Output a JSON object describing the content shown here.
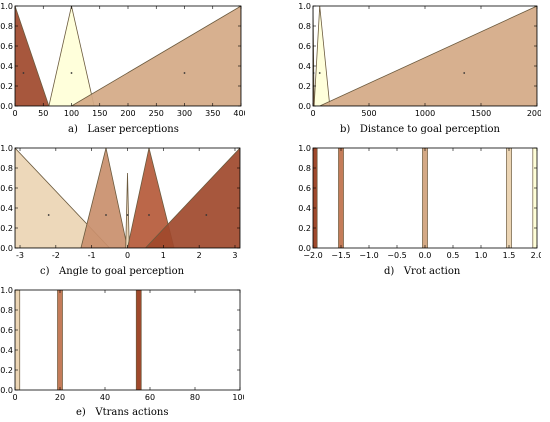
{
  "chart_data": [
    {
      "type": "area",
      "caption": "a)   Laser perceptions",
      "xlim": [
        0,
        400
      ],
      "ylim": [
        0,
        1.0
      ],
      "xticks": [
        0,
        50,
        100,
        150,
        200,
        250,
        300,
        350,
        400
      ],
      "yticks": [
        "0.0",
        "0.2",
        "0.4",
        "0.6",
        "0.8",
        "1.0"
      ],
      "grid": false,
      "series": [
        {
          "points": [
            [
              0,
              1.0
            ],
            [
              60,
              0
            ]
          ],
          "color": "#a0492c",
          "center": [
            15,
            0.33
          ],
          "shape": "left-shoulder"
        },
        {
          "points": [
            [
              60,
              0
            ],
            [
              100,
              1.0
            ],
            [
              140,
              0
            ]
          ],
          "color": "#ffffd8",
          "center": [
            100,
            0.33
          ],
          "shape": "triangle"
        },
        {
          "points": [
            [
              100,
              0
            ],
            [
              400,
              1.0
            ]
          ],
          "color": "#d4a985",
          "center": [
            300,
            0.33
          ],
          "shape": "right-shoulder"
        }
      ]
    },
    {
      "type": "area",
      "caption": "b)   Distance to goal perception",
      "xlim": [
        0,
        2000
      ],
      "ylim": [
        0,
        1.0
      ],
      "xticks": [
        0,
        500,
        1000,
        1500,
        2000
      ],
      "yticks": [
        "0.0",
        "0.2",
        "0.4",
        "0.6",
        "0.8",
        "1.0"
      ],
      "grid": false,
      "series": [
        {
          "points": [
            [
              0,
              1.0
            ],
            [
              10,
              0
            ]
          ],
          "color": "#a0492c",
          "center": [
            5,
            0.33
          ],
          "shape": "left-shoulder"
        },
        {
          "points": [
            [
              10,
              0
            ],
            [
              60,
              1.0
            ],
            [
              150,
              0
            ]
          ],
          "color": "#ffffd8",
          "center": [
            60,
            0.33
          ],
          "shape": "triangle"
        },
        {
          "points": [
            [
              60,
              0
            ],
            [
              2000,
              1.0
            ]
          ],
          "color": "#d4a985",
          "center": [
            1350,
            0.33
          ],
          "shape": "right-shoulder"
        }
      ]
    },
    {
      "type": "area",
      "caption": "c)   Angle to goal perception",
      "xlim": [
        -3.14,
        3.14
      ],
      "ylim": [
        0,
        1.0
      ],
      "xticks": [
        -3,
        -2,
        -1,
        0,
        1,
        2,
        3
      ],
      "yticks": [
        "0.0",
        "0.2",
        "0.4",
        "0.6",
        "0.8",
        "1.0"
      ],
      "grid": false,
      "series": [
        {
          "points": [
            [
              -3.14,
              1.0
            ],
            [
              -0.5,
              0
            ]
          ],
          "color": "#ecd5b4",
          "center": [
            -2.2,
            0.33
          ],
          "shape": "left-shoulder"
        },
        {
          "points": [
            [
              -1.3,
              0
            ],
            [
              -0.6,
              1.0
            ],
            [
              0,
              0
            ]
          ],
          "color": "#c98f6c",
          "center": [
            -0.6,
            0.33
          ],
          "shape": "triangle"
        },
        {
          "points": [
            [
              -0.05,
              0
            ],
            [
              0,
              0.75
            ],
            [
              0.05,
              0
            ]
          ],
          "color": "#e8d3b3",
          "center": [
            0,
            0.33
          ],
          "shape": "triangle"
        },
        {
          "points": [
            [
              0,
              0
            ],
            [
              0.6,
              1.0
            ],
            [
              1.3,
              0
            ]
          ],
          "color": "#b55a3a",
          "center": [
            0.6,
            0.33
          ],
          "shape": "triangle"
        },
        {
          "points": [
            [
              0.5,
              0
            ],
            [
              3.14,
              1.0
            ]
          ],
          "color": "#a0492c",
          "center": [
            2.2,
            0.33
          ],
          "shape": "right-shoulder"
        }
      ]
    },
    {
      "type": "bar",
      "caption": "d)   Vrot action",
      "xlim": [
        -2.0,
        2.0
      ],
      "ylim": [
        0,
        1.0
      ],
      "xticks": [
        "−2.0",
        "−1.5",
        "−1.0",
        "−0.5",
        "0.0",
        "0.5",
        "1.0",
        "1.5",
        "2.0"
      ],
      "xtick_values": [
        -2.0,
        -1.5,
        -1.0,
        -0.5,
        0.0,
        0.5,
        1.0,
        1.5,
        2.0
      ],
      "yticks": [
        "0.0",
        "0.2",
        "0.4",
        "0.6",
        "0.8",
        "1.0"
      ],
      "grid": false,
      "singletons": [
        {
          "x": -1.97,
          "color": "#a0492c"
        },
        {
          "x": -1.5,
          "color": "#c47c59"
        },
        {
          "x": 0.0,
          "color": "#d4a985"
        },
        {
          "x": 1.5,
          "color": "#ecd5b4"
        },
        {
          "x": 1.97,
          "color": "#ffffd8"
        }
      ]
    },
    {
      "type": "bar",
      "caption": "e)   Vtrans actions",
      "xlim": [
        0,
        100
      ],
      "ylim": [
        0,
        1.0
      ],
      "xticks": [
        0,
        20,
        40,
        60,
        80,
        100
      ],
      "yticks": [
        "0.0",
        "0.2",
        "0.4",
        "0.6",
        "0.8",
        "1.0"
      ],
      "grid": false,
      "singletons": [
        {
          "x": 1,
          "color": "#ecd5b4"
        },
        {
          "x": 20,
          "color": "#c47c59"
        },
        {
          "x": 55,
          "color": "#a0492c"
        }
      ]
    }
  ]
}
